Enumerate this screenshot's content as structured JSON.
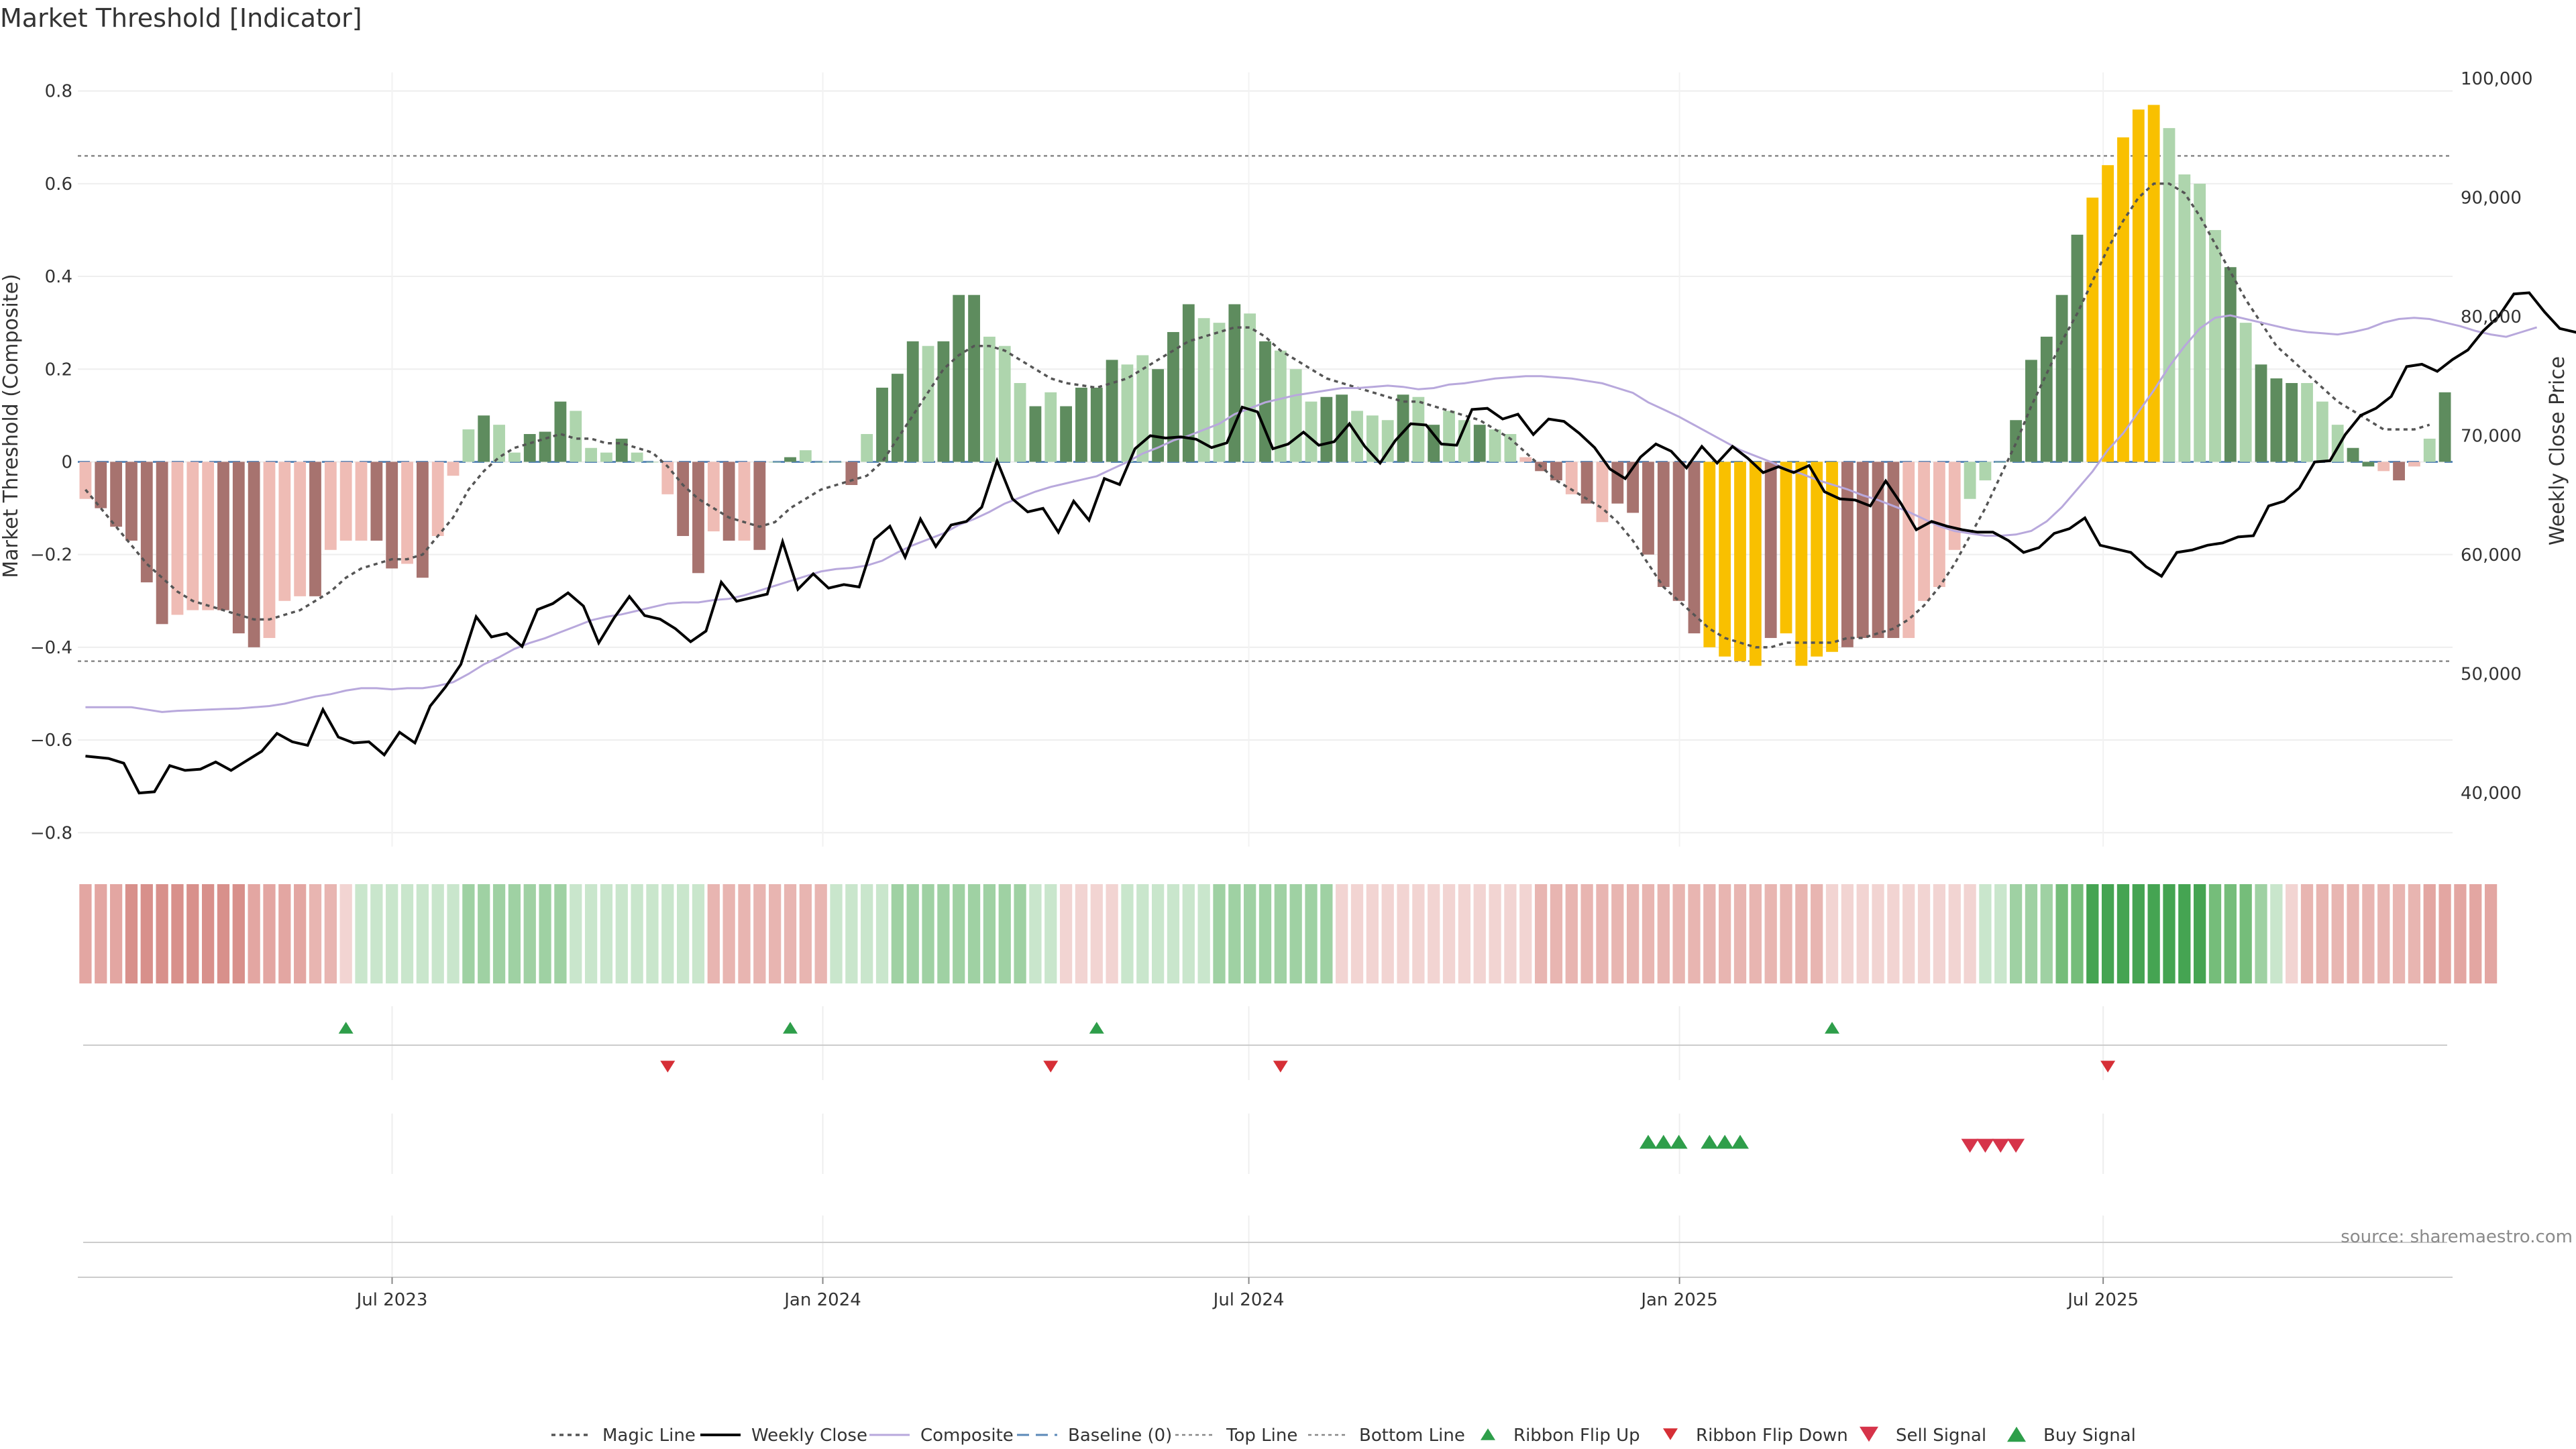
{
  "title": "Market Threshold [Indicator]",
  "source": "source: sharemaestro.com",
  "colors": {
    "strong_up": "#5e8c5e",
    "weak_up": "#aed5ad",
    "strong_down": "#a7736f",
    "weak_down": "#efbcb5",
    "extreme": "#f9c000",
    "magic": "#555555",
    "close": "#000000",
    "composite": "#b8a8dc",
    "baseline": "#5b88b8",
    "band_line": "#888888",
    "flip_up": "#2e9e4a",
    "flip_down": "#d62f36",
    "sell": "#d6344a",
    "buy": "#2e9e4a"
  },
  "chart_data": {
    "type": "bar",
    "title": "Market Threshold [Indicator]",
    "ylabel": "Market Threshold (Composite)",
    "y2label": "Weekly Close Price",
    "ylim": [
      -0.83,
      0.84
    ],
    "y2lim": [
      35500,
      100500
    ],
    "yticks": [
      "0.8",
      "0.6",
      "0.4",
      "0.2",
      "0",
      "−0.2",
      "−0.4",
      "−0.6",
      "−0.8"
    ],
    "yticks_values": [
      0.8,
      0.6,
      0.4,
      0.2,
      0,
      -0.2,
      -0.4,
      -0.6,
      -0.8
    ],
    "y2ticks": [
      "100,000",
      "90,000",
      "80,000",
      "70,000",
      "60,000",
      "50,000",
      "40,000"
    ],
    "y2ticks_values": [
      100000,
      90000,
      80000,
      70000,
      60000,
      50000,
      40000
    ],
    "xticks": [
      {
        "label": "Jul 2023",
        "date": "2023-07-01"
      },
      {
        "label": "Jan 2024",
        "date": "2024-01-01"
      },
      {
        "label": "Jul 2024",
        "date": "2024-07-01"
      },
      {
        "label": "Jan 2025",
        "date": "2025-01-01"
      },
      {
        "label": "Jul 2025",
        "date": "2025-07-01"
      }
    ],
    "x_start": "2023-02-20",
    "x_end": "2025-11-24",
    "top_line": 0.66,
    "bottom_line": -0.43,
    "baseline": 0,
    "grid": true,
    "legend_position": "bottom",
    "legend": [
      "Magic Line",
      "Weekly Close",
      "Composite",
      "Baseline (0)",
      "Top Line",
      "Bottom Line",
      "Ribbon Flip Up",
      "Ribbon Flip Down",
      "Sell Signal",
      "Buy Signal"
    ],
    "composite_bars": [
      -0.08,
      -0.1,
      -0.14,
      -0.17,
      -0.26,
      -0.35,
      -0.33,
      -0.32,
      -0.32,
      -0.32,
      -0.37,
      -0.4,
      -0.38,
      -0.3,
      -0.29,
      -0.29,
      -0.19,
      -0.17,
      -0.17,
      -0.17,
      -0.23,
      -0.22,
      -0.25,
      -0.16,
      -0.03,
      0.07,
      0.1,
      0.08,
      0.02,
      0.06,
      0.065,
      0.13,
      0.11,
      0.03,
      0.02,
      0.05,
      0.02,
      0.0,
      -0.07,
      -0.16,
      -0.24,
      -0.15,
      -0.17,
      -0.17,
      -0.19,
      0.0,
      0.01,
      0.025,
      0.0,
      0.0,
      -0.05,
      0.06,
      0.16,
      0.19,
      0.26,
      0.25,
      0.26,
      0.36,
      0.36,
      0.27,
      0.25,
      0.17,
      0.12,
      0.15,
      0.12,
      0.16,
      0.16,
      0.22,
      0.21,
      0.23,
      0.2,
      0.28,
      0.34,
      0.31,
      0.3,
      0.34,
      0.32,
      0.26,
      0.24,
      0.2,
      0.13,
      0.14,
      0.145,
      0.11,
      0.1,
      0.09,
      0.145,
      0.14,
      0.08,
      0.11,
      0.09,
      0.08,
      0.07,
      0.06,
      0.01,
      -0.02,
      -0.04,
      -0.07,
      -0.09,
      -0.13,
      -0.09,
      -0.11,
      -0.2,
      -0.27,
      -0.3,
      -0.37,
      -0.4,
      -0.42,
      -0.43,
      -0.44,
      -0.38,
      -0.37,
      -0.44,
      -0.42,
      -0.41,
      -0.4,
      -0.38,
      -0.38,
      -0.38,
      -0.38,
      -0.3,
      -0.27,
      -0.19,
      -0.08,
      -0.04,
      0.0,
      0.09,
      0.22,
      0.27,
      0.36,
      0.49,
      0.57,
      0.64,
      0.7,
      0.76,
      0.77,
      0.72,
      0.62,
      0.6,
      0.5,
      0.42,
      0.3,
      0.21,
      0.18,
      0.17,
      0.17,
      0.13,
      0.08,
      0.03,
      -0.01,
      -0.02,
      -0.04,
      -0.01,
      0.05,
      0.15
    ],
    "bar_classes": [
      "wd",
      "sd",
      "sd",
      "sd",
      "sd",
      "sd",
      "wd",
      "wd",
      "wd",
      "sd",
      "sd",
      "sd",
      "wd",
      "wd",
      "wd",
      "sd",
      "wd",
      "wd",
      "wd",
      "sd",
      "sd",
      "wd",
      "sd",
      "wd",
      "wd",
      "wu",
      "su",
      "wu",
      "wu",
      "su",
      "su",
      "su",
      "wu",
      "wu",
      "wu",
      "su",
      "wu",
      "wu",
      "wd",
      "sd",
      "sd",
      "wd",
      "sd",
      "wd",
      "sd",
      "wu",
      "su",
      "wu",
      "wu",
      "wu",
      "sd",
      "wu",
      "su",
      "su",
      "su",
      "wu",
      "su",
      "su",
      "su",
      "wu",
      "wu",
      "wu",
      "su",
      "wu",
      "su",
      "su",
      "su",
      "su",
      "wu",
      "wu",
      "su",
      "su",
      "su",
      "wu",
      "wu",
      "su",
      "wu",
      "su",
      "wu",
      "wu",
      "wu",
      "su",
      "su",
      "wu",
      "wu",
      "wu",
      "su",
      "wu",
      "su",
      "wu",
      "wu",
      "su",
      "wu",
      "wu",
      "wd",
      "sd",
      "sd",
      "wd",
      "sd",
      "wd",
      "sd",
      "sd",
      "sd",
      "sd",
      "sd",
      "sd",
      "x",
      "x",
      "x",
      "x",
      "sd",
      "x",
      "x",
      "x",
      "x",
      "sd",
      "sd",
      "sd",
      "sd",
      "wd",
      "wd",
      "wd",
      "wd",
      "wu",
      "wu",
      "wu",
      "su",
      "su",
      "su",
      "su",
      "su",
      "x",
      "x",
      "x",
      "x",
      "x",
      "wu",
      "wu",
      "wu",
      "wu",
      "su",
      "wu",
      "su",
      "su",
      "su",
      "wu",
      "wu",
      "wu",
      "su",
      "su",
      "wd",
      "sd",
      "wd",
      "wu",
      "su"
    ],
    "ribbon_classes": [
      "r3",
      "r3",
      "r3",
      "r4",
      "r4",
      "r4",
      "r4",
      "r4",
      "r4",
      "r4",
      "r4",
      "r3",
      "r3",
      "r3",
      "r3",
      "r2",
      "r2",
      "r1",
      "g1",
      "g1",
      "g1",
      "g1",
      "g1",
      "g1",
      "g1",
      "g2",
      "g2",
      "g2",
      "g2",
      "g2",
      "g2",
      "g2",
      "g1",
      "g1",
      "g1",
      "g1",
      "g1",
      "g1",
      "g1",
      "g1",
      "g1",
      "r2",
      "r2",
      "r2",
      "r2",
      "r2",
      "r2",
      "r2",
      "r2",
      "g1",
      "g1",
      "g1",
      "g1",
      "g2",
      "g2",
      "g2",
      "g2",
      "g2",
      "g2",
      "g2",
      "g2",
      "g2",
      "g1",
      "g1",
      "r1",
      "r1",
      "r1",
      "r1",
      "g1",
      "g1",
      "g1",
      "g1",
      "g1",
      "g1",
      "g2",
      "g2",
      "g2",
      "g2",
      "g2",
      "g2",
      "g2",
      "g2",
      "r1",
      "r1",
      "r1",
      "r1",
      "r1",
      "r1",
      "r1",
      "r1",
      "r1",
      "r1",
      "r1",
      "r1",
      "r1",
      "r2",
      "r2",
      "r2",
      "r2",
      "r2",
      "r2",
      "r2",
      "r2",
      "r2",
      "r2",
      "r2",
      "r2",
      "r2",
      "r2",
      "r2",
      "r2",
      "r2",
      "r2",
      "r2",
      "r1",
      "r1",
      "r1",
      "r1",
      "r1",
      "r1",
      "r1",
      "r1",
      "r1",
      "r1",
      "g1",
      "g1",
      "g2",
      "g2",
      "g2",
      "g3",
      "g3",
      "g4",
      "g4",
      "g4",
      "g4",
      "g4",
      "g4",
      "g4",
      "g4",
      "g3",
      "g3",
      "g3",
      "g2",
      "g1",
      "r1",
      "r2",
      "r2",
      "r2",
      "r2",
      "r2",
      "r2",
      "r2",
      "r2",
      "r3",
      "r3",
      "r3",
      "r3",
      "r3"
    ],
    "magic_line": [
      -0.06,
      -0.1,
      -0.14,
      -0.18,
      -0.22,
      -0.25,
      -0.28,
      -0.3,
      -0.31,
      -0.32,
      -0.33,
      -0.34,
      -0.34,
      -0.33,
      -0.32,
      -0.3,
      -0.28,
      -0.25,
      -0.23,
      -0.22,
      -0.21,
      -0.21,
      -0.2,
      -0.16,
      -0.12,
      -0.06,
      -0.02,
      0.01,
      0.03,
      0.04,
      0.05,
      0.06,
      0.05,
      0.05,
      0.04,
      0.04,
      0.03,
      0.02,
      -0.01,
      -0.05,
      -0.08,
      -0.1,
      -0.12,
      -0.13,
      -0.14,
      -0.13,
      -0.1,
      -0.08,
      -0.06,
      -0.05,
      -0.04,
      -0.03,
      0.0,
      0.05,
      0.1,
      0.15,
      0.2,
      0.23,
      0.25,
      0.25,
      0.24,
      0.22,
      0.2,
      0.18,
      0.17,
      0.165,
      0.16,
      0.17,
      0.18,
      0.2,
      0.22,
      0.24,
      0.26,
      0.27,
      0.28,
      0.29,
      0.29,
      0.27,
      0.24,
      0.22,
      0.2,
      0.18,
      0.17,
      0.16,
      0.15,
      0.14,
      0.13,
      0.13,
      0.12,
      0.11,
      0.1,
      0.09,
      0.07,
      0.05,
      0.02,
      -0.01,
      -0.04,
      -0.06,
      -0.08,
      -0.1,
      -0.13,
      -0.17,
      -0.22,
      -0.27,
      -0.3,
      -0.33,
      -0.36,
      -0.38,
      -0.39,
      -0.4,
      -0.4,
      -0.39,
      -0.39,
      -0.39,
      -0.39,
      -0.38,
      -0.38,
      -0.37,
      -0.36,
      -0.34,
      -0.31,
      -0.27,
      -0.22,
      -0.16,
      -0.1,
      -0.03,
      0.04,
      0.12,
      0.19,
      0.26,
      0.32,
      0.39,
      0.46,
      0.52,
      0.57,
      0.6,
      0.6,
      0.58,
      0.53,
      0.47,
      0.41,
      0.35,
      0.3,
      0.25,
      0.22,
      0.19,
      0.16,
      0.13,
      0.11,
      0.09,
      0.07,
      0.07,
      0.07,
      0.08
    ],
    "composite_line": [
      47200,
      47200,
      47200,
      47200,
      47000,
      46800,
      46900,
      46950,
      47000,
      47050,
      47100,
      47200,
      47300,
      47500,
      47800,
      48100,
      48300,
      48600,
      48800,
      48800,
      48700,
      48800,
      48800,
      49000,
      49300,
      50000,
      50800,
      51400,
      52100,
      52600,
      53000,
      53500,
      54000,
      54500,
      54800,
      55000,
      55300,
      55600,
      55900,
      56000,
      56000,
      56200,
      56300,
      56600,
      57000,
      57400,
      57800,
      58200,
      58600,
      58800,
      58900,
      59100,
      59500,
      60200,
      60800,
      61300,
      61800,
      62500,
      63000,
      63600,
      64300,
      64800,
      65300,
      65700,
      66000,
      66300,
      66600,
      67200,
      67800,
      68500,
      69000,
      69600,
      70000,
      70500,
      71000,
      71800,
      72300,
      72800,
      73100,
      73400,
      73600,
      73800,
      74000,
      74000,
      74100,
      74200,
      74100,
      73900,
      74000,
      74300,
      74400,
      74600,
      74800,
      74900,
      75000,
      75000,
      74900,
      74800,
      74600,
      74400,
      74000,
      73600,
      72800,
      72200,
      71600,
      70900,
      70200,
      69500,
      68800,
      68300,
      67800,
      67200,
      66800,
      66300,
      65900,
      65500,
      65000,
      64600,
      64100,
      63600,
      63000,
      62400,
      62000,
      61800,
      61600,
      61600,
      61700,
      62000,
      62800,
      64000,
      65500,
      67000,
      68800,
      70200,
      72000,
      73800,
      75800,
      77500,
      79000,
      79900,
      80100,
      79800,
      79500,
      79200,
      78900,
      78700,
      78600,
      78500,
      78700,
      79000,
      79500,
      79800,
      79900,
      79800,
      79500,
      79200,
      78800,
      78500,
      78300,
      78700,
      79100
    ]
  },
  "close_points": [
    [
      0,
      43100
    ],
    [
      3,
      42900
    ],
    [
      5,
      42500
    ],
    [
      7,
      40000
    ],
    [
      9,
      40100
    ],
    [
      11,
      42300
    ],
    [
      13,
      41900
    ],
    [
      15,
      42000
    ],
    [
      17,
      42600
    ],
    [
      19,
      41900
    ],
    [
      21,
      42700
    ],
    [
      23,
      43500
    ],
    [
      25,
      45000
    ],
    [
      27,
      44300
    ],
    [
      29,
      44000
    ],
    [
      31,
      47000
    ],
    [
      33,
      44700
    ],
    [
      35,
      44200
    ],
    [
      37,
      44300
    ],
    [
      39,
      43200
    ],
    [
      41,
      45100
    ],
    [
      43,
      44200
    ],
    [
      45,
      47300
    ],
    [
      47,
      48900
    ],
    [
      49,
      50800
    ],
    [
      51,
      54800
    ],
    [
      53,
      53100
    ],
    [
      55,
      53400
    ],
    [
      57,
      52300
    ],
    [
      59,
      55400
    ],
    [
      61,
      55900
    ],
    [
      63,
      56800
    ],
    [
      65,
      55700
    ],
    [
      67,
      52600
    ],
    [
      69,
      54700
    ],
    [
      71,
      56500
    ],
    [
      73,
      54900
    ],
    [
      75,
      54600
    ],
    [
      77,
      53800
    ],
    [
      79,
      52700
    ],
    [
      81,
      53600
    ],
    [
      83,
      57700
    ],
    [
      85,
      56100
    ],
    [
      87,
      56400
    ],
    [
      89,
      56700
    ],
    [
      91,
      61100
    ],
    [
      93,
      57100
    ],
    [
      95,
      58400
    ],
    [
      97,
      57200
    ],
    [
      99,
      57500
    ],
    [
      101,
      57300
    ],
    [
      103,
      61300
    ],
    [
      105,
      62400
    ],
    [
      107,
      59800
    ],
    [
      109,
      63000
    ],
    [
      111,
      60700
    ],
    [
      113,
      62500
    ],
    [
      115,
      62800
    ],
    [
      117,
      64000
    ],
    [
      119,
      67900
    ],
    [
      121,
      64700
    ],
    [
      123,
      63600
    ],
    [
      125,
      63900
    ],
    [
      127,
      61900
    ],
    [
      129,
      64500
    ],
    [
      131,
      62900
    ],
    [
      133,
      66400
    ],
    [
      135,
      65900
    ],
    [
      137,
      68900
    ],
    [
      139,
      70000
    ],
    [
      141,
      69800
    ],
    [
      143,
      69900
    ],
    [
      145,
      69700
    ],
    [
      147,
      69000
    ],
    [
      149,
      69400
    ],
    [
      151,
      72400
    ],
    [
      153,
      72000
    ],
    [
      155,
      68900
    ],
    [
      157,
      69300
    ],
    [
      159,
      70300
    ],
    [
      161,
      69200
    ],
    [
      163,
      69500
    ],
    [
      165,
      71000
    ],
    [
      167,
      69100
    ],
    [
      169,
      67700
    ],
    [
      171,
      69600
    ],
    [
      173,
      71000
    ],
    [
      175,
      70900
    ],
    [
      177,
      69300
    ],
    [
      179,
      69200
    ],
    [
      181,
      72200
    ],
    [
      183,
      72300
    ],
    [
      185,
      71400
    ],
    [
      187,
      71800
    ],
    [
      189,
      70100
    ],
    [
      191,
      71400
    ],
    [
      193,
      71200
    ],
    [
      195,
      70200
    ],
    [
      197,
      69000
    ],
    [
      199,
      67200
    ],
    [
      201,
      66400
    ],
    [
      203,
      68200
    ],
    [
      205,
      69300
    ],
    [
      207,
      68700
    ],
    [
      209,
      67300
    ],
    [
      211,
      69100
    ],
    [
      213,
      67700
    ],
    [
      215,
      69100
    ],
    [
      217,
      68100
    ],
    [
      219,
      66900
    ],
    [
      221,
      67400
    ],
    [
      223,
      66900
    ],
    [
      225,
      67500
    ],
    [
      227,
      65300
    ],
    [
      229,
      64700
    ],
    [
      231,
      64600
    ],
    [
      233,
      64100
    ],
    [
      235,
      66200
    ],
    [
      237,
      64300
    ],
    [
      239,
      62100
    ],
    [
      241,
      62800
    ],
    [
      243,
      62400
    ],
    [
      245,
      62100
    ],
    [
      247,
      61900
    ],
    [
      249,
      61900
    ],
    [
      251,
      61200
    ],
    [
      253,
      60200
    ],
    [
      255,
      60600
    ],
    [
      257,
      61800
    ],
    [
      259,
      62200
    ],
    [
      261,
      63100
    ],
    [
      263,
      60800
    ],
    [
      265,
      60500
    ],
    [
      267,
      60200
    ],
    [
      269,
      59000
    ],
    [
      271,
      58200
    ],
    [
      273,
      60200
    ],
    [
      275,
      60400
    ],
    [
      277,
      60800
    ],
    [
      279,
      61000
    ],
    [
      281,
      61500
    ],
    [
      283,
      61600
    ],
    [
      285,
      64100
    ],
    [
      287,
      64500
    ],
    [
      289,
      65600
    ],
    [
      291,
      67800
    ],
    [
      293,
      67900
    ],
    [
      295,
      70100
    ],
    [
      297,
      71700
    ],
    [
      299,
      72300
    ],
    [
      301,
      73300
    ],
    [
      303,
      75800
    ],
    [
      305,
      76000
    ],
    [
      307,
      75400
    ],
    [
      309,
      76400
    ],
    [
      311,
      77200
    ],
    [
      313,
      78800
    ],
    [
      315,
      80000
    ],
    [
      317,
      81900
    ],
    [
      319,
      82000
    ],
    [
      321,
      80400
    ],
    [
      323,
      79000
    ],
    [
      325,
      78700
    ],
    [
      327,
      78300
    ],
    [
      329,
      77900
    ],
    [
      331,
      77900
    ]
  ],
  "flip_up": [
    17,
    46,
    66,
    114
  ],
  "flip_down": [
    38,
    63,
    78,
    132
  ],
  "buy": [
    102,
    103,
    104,
    106,
    107,
    108
  ],
  "sell": [
    123,
    124,
    125,
    126
  ]
}
